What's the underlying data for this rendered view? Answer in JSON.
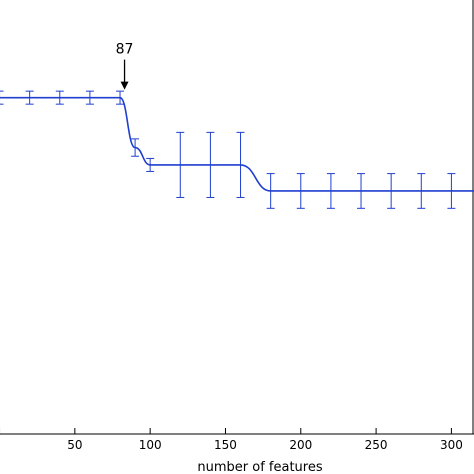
{
  "chart_data": {
    "type": "line",
    "xlabel": "number of features",
    "ylabel": "",
    "title": "",
    "xlim": [
      -5,
      315
    ],
    "ylim": [
      0,
      1
    ],
    "xticks": [
      50,
      100,
      150,
      200,
      250,
      300
    ],
    "grid": false,
    "color": "#1f3fd0",
    "series": [
      {
        "x": [
          0,
          20,
          40,
          60,
          80,
          90,
          100,
          120,
          140,
          160,
          180,
          200,
          220,
          240,
          260,
          280,
          300,
          315
        ],
        "y": [
          0.775,
          0.775,
          0.775,
          0.775,
          0.775,
          0.66,
          0.62,
          0.62,
          0.62,
          0.62,
          0.56,
          0.56,
          0.56,
          0.56,
          0.56,
          0.56,
          0.56,
          0.56
        ],
        "err": [
          0.015,
          0.015,
          0.015,
          0.015,
          0.015,
          0.02,
          0.015,
          0.075,
          0.075,
          0.075,
          0.04,
          0.04,
          0.04,
          0.04,
          0.04,
          0.04,
          0.04,
          0.0
        ]
      }
    ],
    "annotations": [
      {
        "text": "87",
        "x": 83,
        "y": 0.775,
        "arrow": "down"
      }
    ]
  }
}
